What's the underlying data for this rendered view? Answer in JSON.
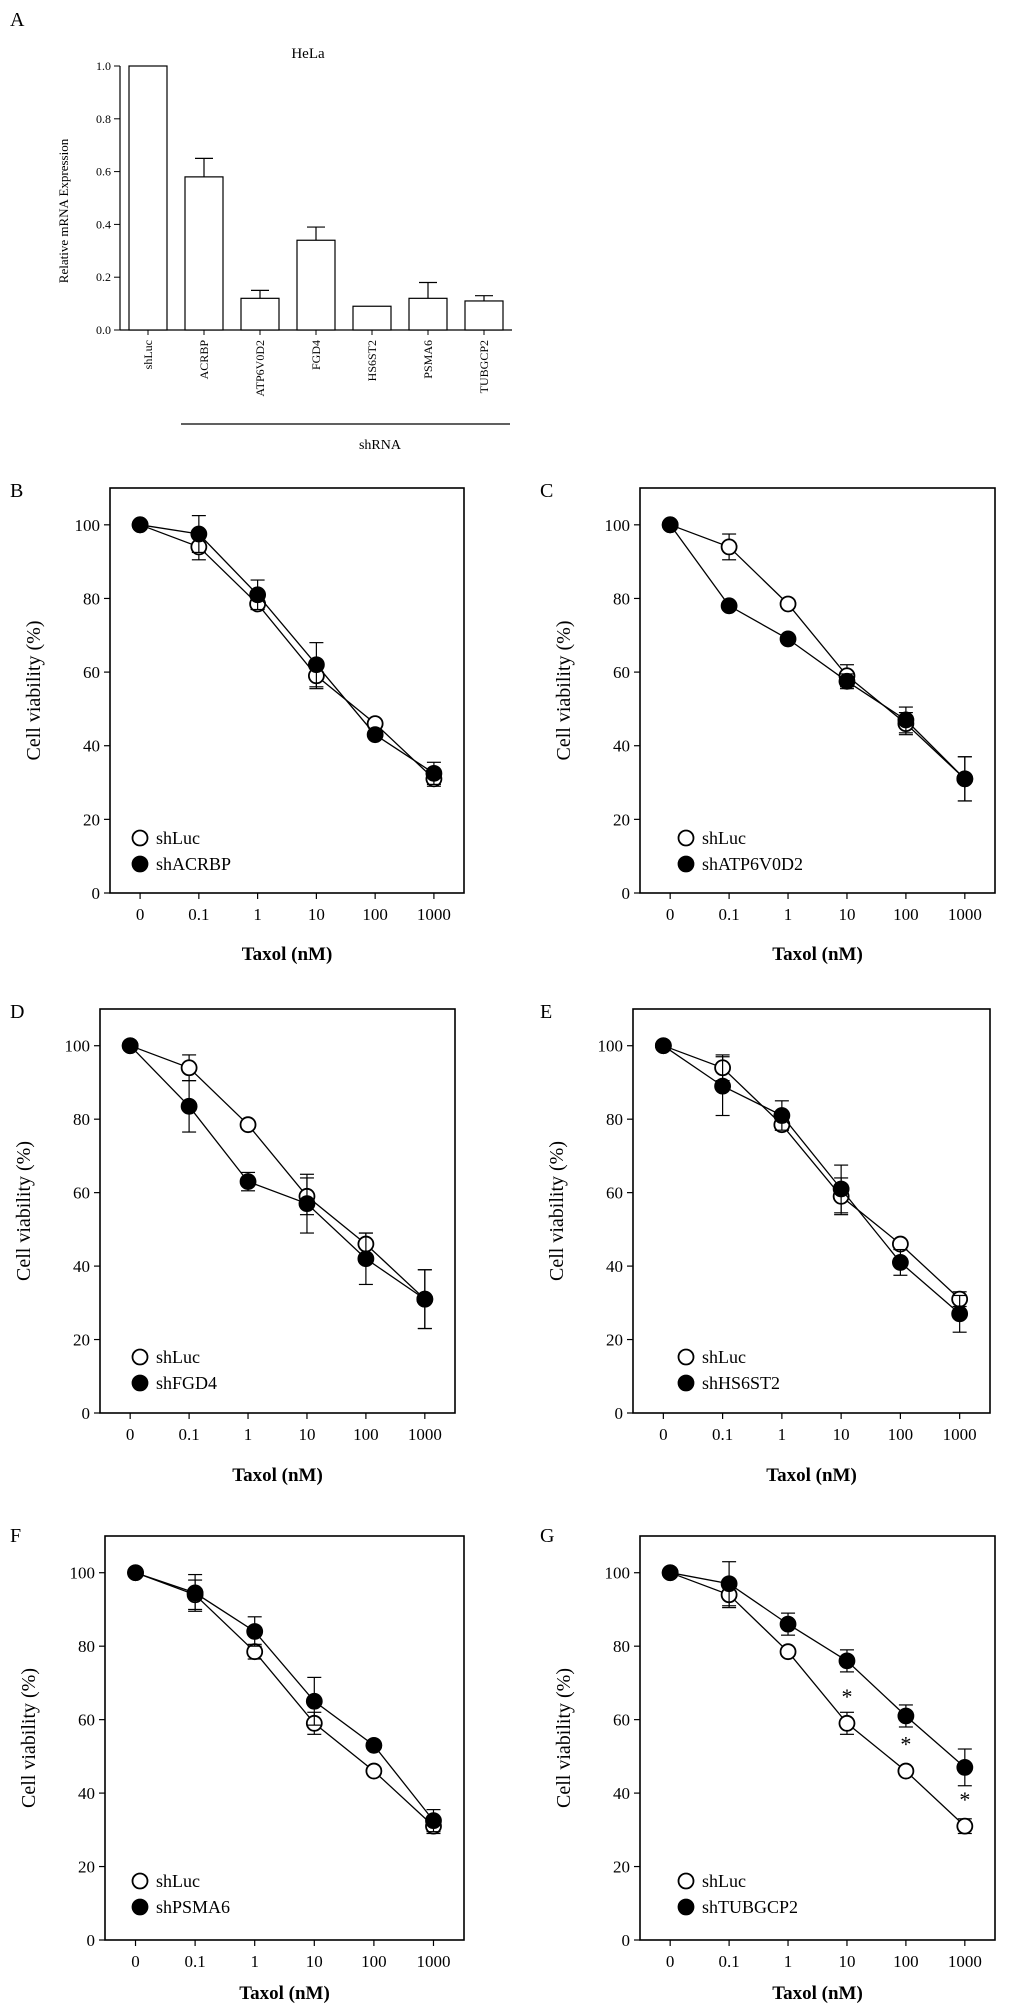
{
  "panels": {
    "A": "A",
    "B": "B",
    "C": "C",
    "D": "D",
    "E": "E",
    "F": "F",
    "G": "G"
  },
  "chart_data": [
    {
      "panel": "A",
      "type": "bar",
      "title": "HeLa",
      "ylabel": "Relative mRNA Expression",
      "xlabel": "shRNA",
      "categories": [
        "shLuc",
        "ACRBP",
        "ATP6V0D2",
        "FGD4",
        "HS6ST2",
        "PSMA6",
        "TUBGCP2"
      ],
      "values": [
        1.0,
        0.58,
        0.12,
        0.34,
        0.09,
        0.12,
        0.11
      ],
      "errors": [
        0,
        0.07,
        0.03,
        0.05,
        0,
        0.06,
        0.02
      ],
      "ylim": [
        0,
        1.0
      ],
      "yticks": [
        "0.0",
        "0.2",
        "0.4",
        "0.6",
        "0.8",
        "1.0"
      ],
      "grid": false
    },
    {
      "panel": "B",
      "type": "line",
      "xlabel": "Taxol (nM)",
      "ylabel": "Cell viability (%)",
      "x": [
        "0",
        "0.1",
        "1",
        "10",
        "100",
        "1000"
      ],
      "yticks": [
        "0",
        "20",
        "40",
        "60",
        "80",
        "100"
      ],
      "ylim": [
        0,
        110
      ],
      "legend_position": "bottom-left",
      "grid": false,
      "series": [
        {
          "name": "shLuc",
          "marker": "open-circle",
          "values": [
            100,
            94,
            78.5,
            59,
            46,
            31
          ],
          "errors": [
            0,
            3.5,
            1.5,
            3.5,
            0,
            2
          ]
        },
        {
          "name": "shACRBP",
          "marker": "filled-circle",
          "values": [
            100,
            97.5,
            81,
            62,
            43,
            32.5
          ],
          "errors": [
            0,
            5,
            4,
            6,
            0,
            3
          ]
        }
      ],
      "annotations": []
    },
    {
      "panel": "C",
      "type": "line",
      "xlabel": "Taxol (nM)",
      "ylabel": "Cell viability (%)",
      "x": [
        "0",
        "0.1",
        "1",
        "10",
        "100",
        "1000"
      ],
      "yticks": [
        "0",
        "20",
        "40",
        "60",
        "80",
        "100"
      ],
      "ylim": [
        0,
        110
      ],
      "legend_position": "bottom-left",
      "grid": false,
      "series": [
        {
          "name": "shLuc",
          "marker": "open-circle",
          "values": [
            100,
            94,
            78.5,
            59,
            46,
            31
          ],
          "errors": [
            0,
            3.5,
            0,
            3,
            3,
            6
          ]
        },
        {
          "name": "shATP6V0D2",
          "marker": "filled-circle",
          "values": [
            100,
            78,
            69,
            57.5,
            47,
            31
          ],
          "errors": [
            0,
            0,
            0,
            2,
            3.5,
            6
          ]
        }
      ],
      "annotations": []
    },
    {
      "panel": "D",
      "type": "line",
      "xlabel": "Taxol (nM)",
      "ylabel": "Cell viability (%)",
      "x": [
        "0",
        "0.1",
        "1",
        "10",
        "100",
        "1000"
      ],
      "yticks": [
        "0",
        "20",
        "40",
        "60",
        "80",
        "100"
      ],
      "ylim": [
        0,
        110
      ],
      "legend_position": "bottom-left",
      "grid": false,
      "series": [
        {
          "name": "shLuc",
          "marker": "open-circle",
          "values": [
            100,
            94,
            78.5,
            59,
            46,
            31
          ],
          "errors": [
            0,
            3.5,
            0,
            5,
            3,
            8
          ]
        },
        {
          "name": "shFGD4",
          "marker": "filled-circle",
          "values": [
            100,
            83.5,
            63,
            57,
            42,
            31
          ],
          "errors": [
            0,
            7,
            2.5,
            8,
            7,
            8
          ]
        }
      ],
      "annotations": []
    },
    {
      "panel": "E",
      "type": "line",
      "xlabel": "Taxol (nM)",
      "ylabel": "Cell viability (%)",
      "x": [
        "0",
        "0.1",
        "1",
        "10",
        "100",
        "1000"
      ],
      "yticks": [
        "0",
        "20",
        "40",
        "60",
        "80",
        "100"
      ],
      "ylim": [
        0,
        110
      ],
      "legend_position": "bottom-left",
      "grid": false,
      "series": [
        {
          "name": "shLuc",
          "marker": "open-circle",
          "values": [
            100,
            94,
            78.5,
            59,
            46,
            31
          ],
          "errors": [
            0,
            3.5,
            1.5,
            5,
            0,
            2
          ]
        },
        {
          "name": "shHS6ST2",
          "marker": "filled-circle",
          "values": [
            100,
            89,
            81,
            61,
            41,
            27
          ],
          "errors": [
            0,
            8,
            4,
            6.5,
            3.5,
            5
          ]
        }
      ],
      "annotations": []
    },
    {
      "panel": "F",
      "type": "line",
      "xlabel": "Taxol (nM)",
      "ylabel": "Cell viability (%)",
      "x": [
        "0",
        "0.1",
        "1",
        "10",
        "100",
        "1000"
      ],
      "yticks": [
        "0",
        "20",
        "40",
        "60",
        "80",
        "100"
      ],
      "ylim": [
        0,
        110
      ],
      "legend_position": "bottom-left",
      "grid": false,
      "series": [
        {
          "name": "shLuc",
          "marker": "open-circle",
          "values": [
            100,
            94,
            78.5,
            59,
            46,
            31
          ],
          "errors": [
            0,
            4,
            2,
            3,
            0,
            2
          ]
        },
        {
          "name": "shPSMA6",
          "marker": "filled-circle",
          "values": [
            100,
            94.5,
            84,
            65,
            53,
            32.5
          ],
          "errors": [
            0,
            5,
            4,
            6.5,
            0,
            3
          ]
        }
      ],
      "annotations": []
    },
    {
      "panel": "G",
      "type": "line",
      "xlabel": "Taxol (nM)",
      "ylabel": "Cell viability (%)",
      "x": [
        "0",
        "0.1",
        "1",
        "10",
        "100",
        "1000"
      ],
      "yticks": [
        "0",
        "20",
        "40",
        "60",
        "80",
        "100"
      ],
      "ylim": [
        0,
        110
      ],
      "legend_position": "bottom-left",
      "grid": false,
      "series": [
        {
          "name": "shLuc",
          "marker": "open-circle",
          "values": [
            100,
            94,
            78.5,
            59,
            46,
            31
          ],
          "errors": [
            0,
            3.5,
            0,
            3,
            0,
            2
          ]
        },
        {
          "name": "shTUBGCP2",
          "marker": "filled-circle",
          "values": [
            100,
            97,
            86,
            76,
            61,
            47
          ],
          "errors": [
            0,
            6,
            3,
            3,
            3,
            5
          ]
        }
      ],
      "annotations": [
        {
          "text": "*",
          "x": "10",
          "y": 67
        },
        {
          "text": "*",
          "x": "100",
          "y": 54
        },
        {
          "text": "*",
          "x": "1000",
          "y": 39
        }
      ]
    }
  ]
}
